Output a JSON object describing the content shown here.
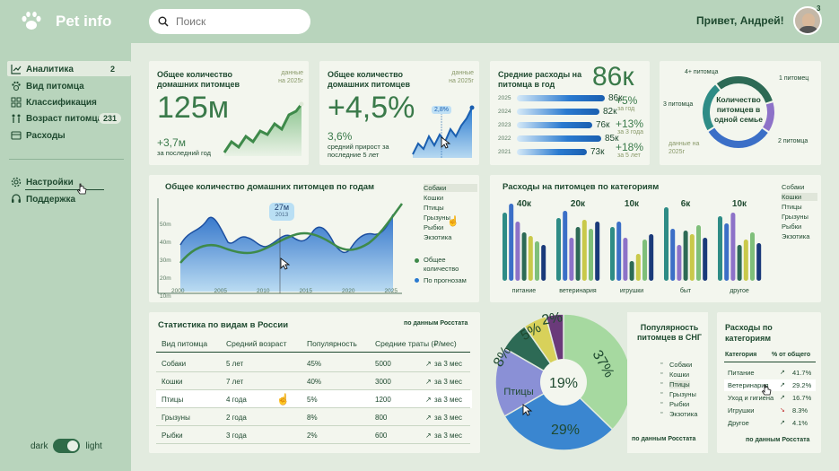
{
  "app": {
    "name": "Pet info"
  },
  "search": {
    "placeholder": "Поиск"
  },
  "user": {
    "greeting": "Привет, Андрей!",
    "notifications": "3"
  },
  "sidebar": {
    "items": [
      {
        "label": "Аналитика",
        "badge": "2"
      },
      {
        "label": "Вид питомца"
      },
      {
        "label": "Классификация"
      },
      {
        "label": "Возраст питомца",
        "badge": "231"
      },
      {
        "label": "Расходы"
      }
    ],
    "bottom_items": [
      {
        "label": "Настройки"
      },
      {
        "label": "Поддержка"
      }
    ],
    "theme": {
      "dark": "dark",
      "light": "light"
    }
  },
  "kpi1": {
    "title": "Общее количество домашних питомцев",
    "note": "данные на 2025г",
    "value": "125м",
    "delta": "+3,7м",
    "delta_label": "за последний год"
  },
  "kpi2": {
    "title": "Общее количество домашних питомцев",
    "note": "данные на 2025г",
    "value": "+4,5%",
    "tag": "2,8%",
    "sub_value": "3,6%",
    "sub_label": "средний прирост за последние 5 лет"
  },
  "kpi3": {
    "title": "Средние расходы на питомца в год",
    "value": "86к",
    "bars": [
      {
        "year": "2025",
        "value": "86к"
      },
      {
        "year": "2024",
        "value": "82к"
      },
      {
        "year": "2023",
        "value": "76к"
      },
      {
        "year": "2022",
        "value": "85к"
      },
      {
        "year": "2021",
        "value": "73к"
      }
    ],
    "growth": [
      {
        "value": "+5%",
        "label": "за год"
      },
      {
        "value": "+13%",
        "label": "за 3 года"
      },
      {
        "value": "+18%",
        "label": "за 5 лет"
      }
    ]
  },
  "kpi4": {
    "center": "Количество питомцев в одной семье",
    "labels": [
      "4+ питомца",
      "1 питомец",
      "3 питомца",
      "2 питомца"
    ],
    "note": "данные на 2025г"
  },
  "linechart": {
    "title": "Общее количество домашних питомцев по годам",
    "tooltip_value": "27м",
    "tooltip_year": "2013",
    "filters": [
      "Собаки",
      "Кошки",
      "Птицы",
      "Грызуны",
      "Рыбки",
      "Экзотика"
    ],
    "legend": [
      "Общее количество",
      "По прогнозам"
    ]
  },
  "barchart": {
    "title": "Расходы на питомцев по категориям",
    "filters": [
      "Собаки",
      "Кошки",
      "Птицы",
      "Грызуны",
      "Рыбки",
      "Экзотика"
    ]
  },
  "table": {
    "title": "Статистика по видам в России",
    "source": "по данным Росстата",
    "headers": [
      "Вид питомца",
      "Средний возраст",
      "Популярность",
      "Средние траты (₽/мес)"
    ],
    "rows": [
      {
        "name": "Собаки",
        "age": "5 лет",
        "pop": "45%",
        "cost": "5000",
        "trend": "за 3 мес"
      },
      {
        "name": "Кошки",
        "age": "7 лет",
        "pop": "40%",
        "cost": "3000",
        "trend": "за 3 мес"
      },
      {
        "name": "Птицы",
        "age": "4 года",
        "pop": "5%",
        "cost": "1200",
        "trend": "за 3 мес"
      },
      {
        "name": "Грызуны",
        "age": "2 года",
        "pop": "8%",
        "cost": "800",
        "trend": "за 3 мес"
      },
      {
        "name": "Рыбки",
        "age": "3 года",
        "pop": "2%",
        "cost": "600",
        "trend": "за 3 мес"
      }
    ]
  },
  "pie": {
    "title": "Популярность питомцев в СНГ",
    "source": "по данным Росстата",
    "legend": [
      "Собаки",
      "Кошки",
      "Птицы",
      "Грызуны",
      "Рыбки",
      "Экзотика"
    ]
  },
  "expenses": {
    "title": "Расходы по категориям",
    "col1": "Категория",
    "col2": "% от общего",
    "rows": [
      {
        "name": "Питание",
        "value": "41.7%"
      },
      {
        "name": "Ветеринария",
        "value": "29.2%"
      },
      {
        "name": "Уход и гигиена",
        "value": "16.7%"
      },
      {
        "name": "Игрушки",
        "value": "8.3%"
      },
      {
        "name": "Другое",
        "value": "4.1%"
      }
    ],
    "source": "по данным Росстата"
  },
  "chart_data": [
    {
      "type": "line",
      "title": "Общее количество домашних питомцев по годам",
      "x": [
        2000,
        2005,
        2010,
        2015,
        2020,
        2025
      ],
      "ylabels": [
        "50m",
        "40m",
        "30m",
        "20m",
        "10m"
      ],
      "series": [
        {
          "name": "Общее количество"
        },
        {
          "name": "По прогнозам"
        }
      ],
      "annotation": {
        "value": "27м",
        "year": "2013"
      }
    },
    {
      "type": "bar",
      "title": "Расходы на питомцев по категориям",
      "categories": [
        "питание",
        "ветеринария",
        "игрушки",
        "быт",
        "другое"
      ],
      "values": [
        "40к",
        "20к",
        "10к",
        "6к",
        "10к"
      ]
    },
    {
      "type": "pie",
      "title": "Популярность питомцев в СНГ",
      "center": "19%",
      "values": [
        37,
        29,
        "",
        8,
        5,
        2
      ],
      "labels": [
        "37%",
        "29%",
        "Птицы",
        "8%",
        "5%",
        "2%"
      ]
    }
  ]
}
